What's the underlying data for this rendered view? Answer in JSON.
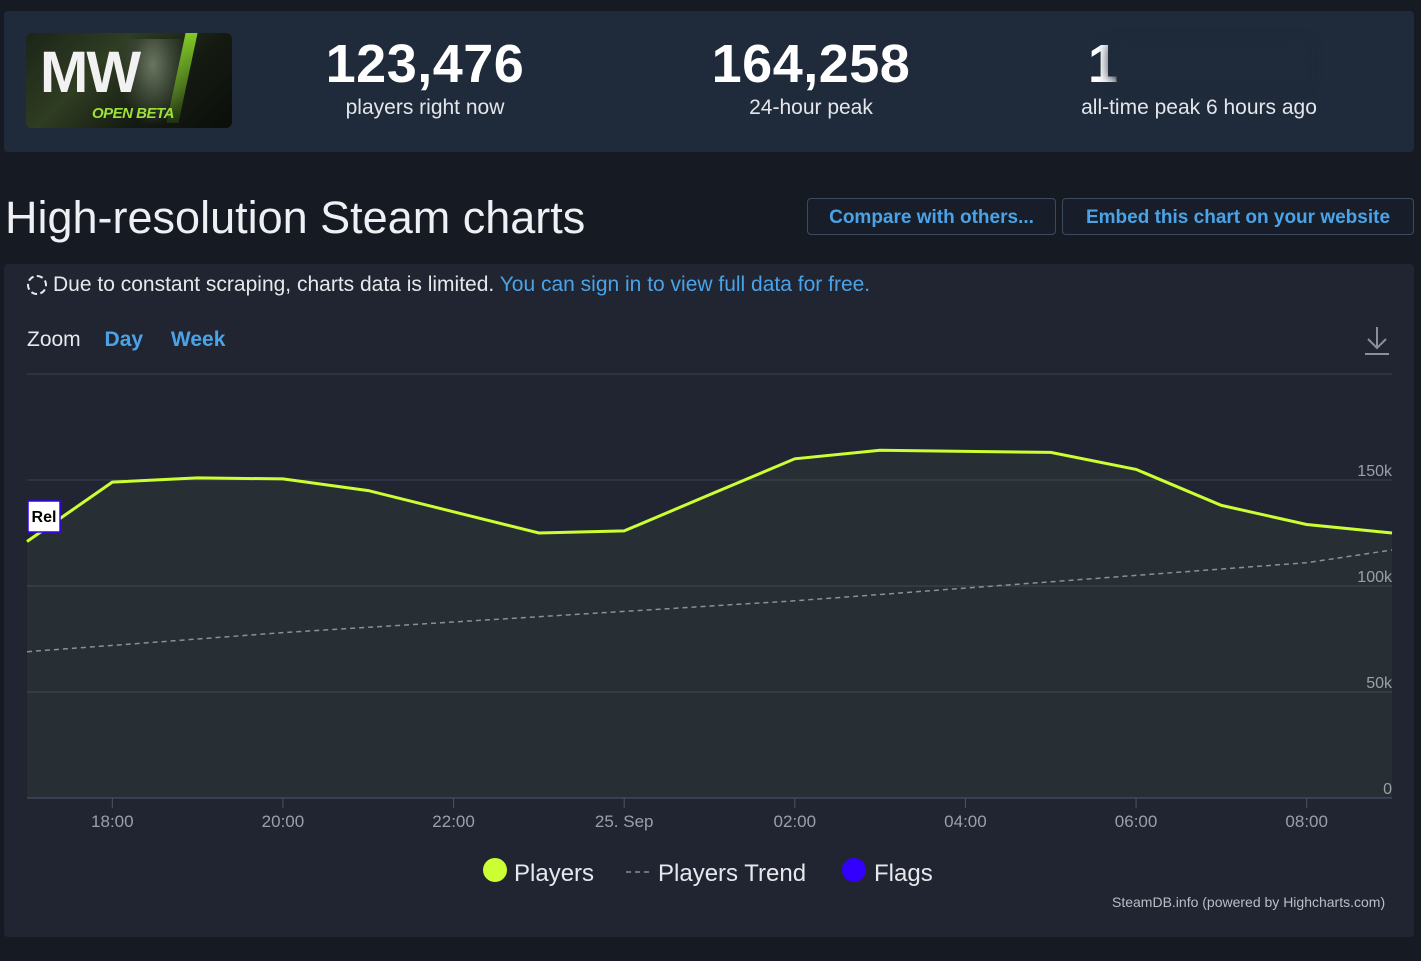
{
  "stats": [
    {
      "value": "123,476",
      "label": "players right now"
    },
    {
      "value": "164,258",
      "label": "24-hour peak"
    },
    {
      "value": "1",
      "label": "all-time peak 6 hours ago"
    }
  ],
  "game_logo": {
    "text": "MW",
    "badge": "OPEN BETA"
  },
  "page_title": "High-resolution Steam charts",
  "buttons": {
    "compare": "Compare with others...",
    "embed": "Embed this chart on your website"
  },
  "notice": {
    "text": "Due to constant scraping, charts data is limited.",
    "link": "You can sign in to view full data for free."
  },
  "zoom": {
    "label": "Zoom",
    "day": "Day",
    "week": "Week"
  },
  "credit": "SteamDB.info (powered by Highcharts.com)",
  "colors": {
    "players": "#ccff33",
    "trend": "#8a8f98",
    "flags": "#3300ff",
    "link": "#4aa3e8"
  },
  "icons": [
    "dashed-circle-icon",
    "download-icon"
  ],
  "chart_data": {
    "type": "line",
    "x_unit": "time (24 Sep 17:00 to 25 Sep 09:00)",
    "x": [
      "17:00",
      "18:00",
      "19:00",
      "20:00",
      "21:00",
      "22:00",
      "23:00",
      "00:00",
      "01:00",
      "02:00",
      "03:00",
      "04:00",
      "05:00",
      "06:00",
      "07:00",
      "08:00",
      "09:00"
    ],
    "series": [
      {
        "name": "Players",
        "values": [
          121000,
          149000,
          151000,
          150500,
          145000,
          135000,
          125000,
          126000,
          143000,
          160000,
          164000,
          163500,
          163000,
          155000,
          138000,
          129000,
          125000
        ]
      },
      {
        "name": "Players Trend",
        "values": [
          69000,
          72000,
          75000,
          78000,
          80500,
          83000,
          85500,
          88000,
          90500,
          93000,
          96000,
          99000,
          102000,
          105000,
          108000,
          111000,
          117000
        ]
      }
    ],
    "legend": [
      "Players",
      "Players Trend",
      "Flags"
    ],
    "flag_label": "Rel",
    "x_ticks": [
      "18:00",
      "20:00",
      "22:00",
      "25. Sep",
      "02:00",
      "04:00",
      "06:00",
      "08:00"
    ],
    "y_ticks": [
      "0",
      "50k",
      "100k",
      "150k"
    ],
    "ylim": [
      0,
      200000
    ],
    "grid": true,
    "area_fill": true,
    "legend_position": "bottom-center"
  }
}
